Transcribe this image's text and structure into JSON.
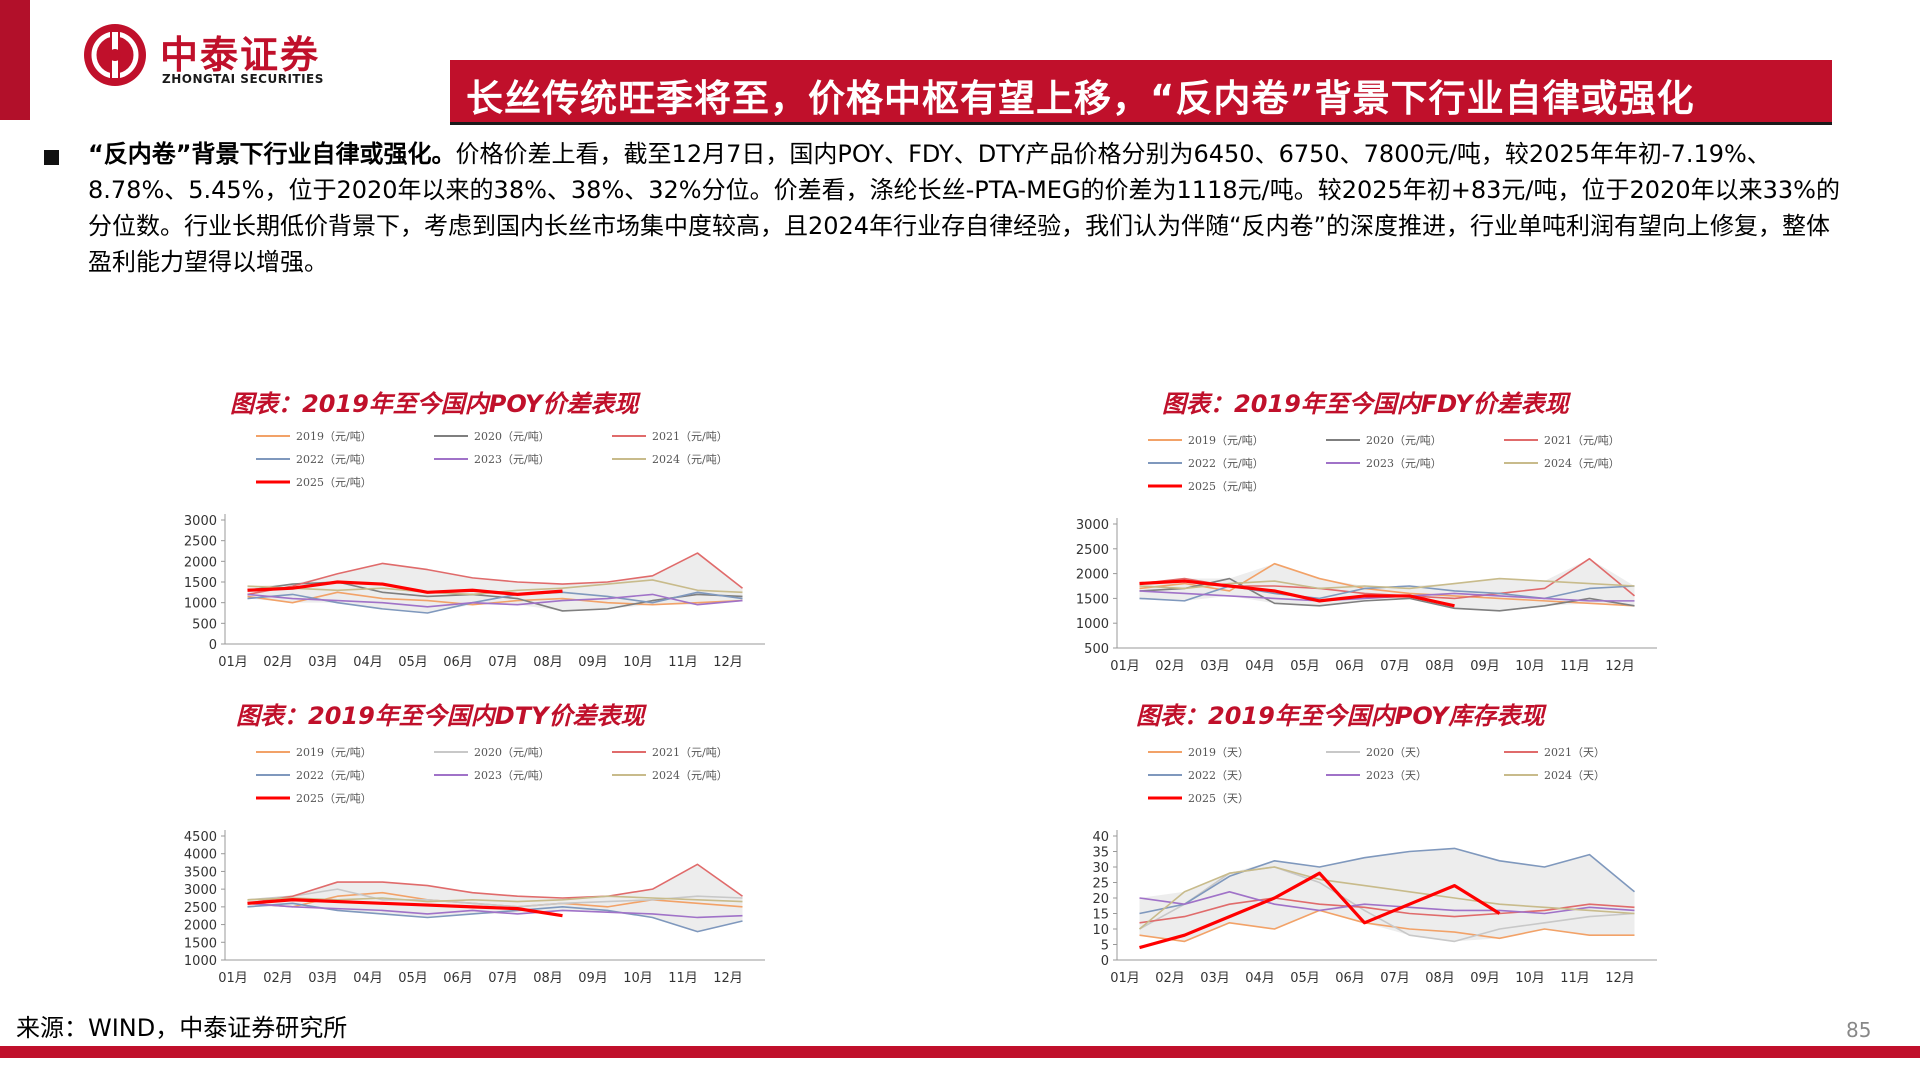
{
  "brand": {
    "name_cn": "中泰证券",
    "name_en": "ZHONGTAI SECURITIES",
    "color": "#c0102b"
  },
  "slide_title": "长丝传统旺季将至，价格中枢有望上移，“反内卷”背景下行业自律或强化",
  "paragraph": {
    "lead": "“反内卷”背景下行业自律或强化。",
    "body": "价格价差上看，截至12月7日，国内POY、FDY、DTY产品价格分别为6450、6750、7800元/吨，较2025年年初-7.19%、8.78%、5.45%，位于2020年以来的38%、38%、32%分位。价差看，涤纶长丝-PTA-MEG的价差为1118元/吨。较2025年初+83元/吨，位于2020年以来33%的分位数。行业长期低价背景下，考虑到国内长丝市场集中度较高，且2024年行业存自律经验，我们认为伴随“反内卷”的深度推进，行业单吨利润有望向上修复，整体盈利能力望得以增强。"
  },
  "chart_data": [
    {
      "type": "line",
      "title": "图表：2019年至今国内POY价差表现",
      "x_ticks": [
        "01月",
        "02月",
        "03月",
        "04月",
        "05月",
        "06月",
        "07月",
        "08月",
        "09月",
        "10月",
        "11月",
        "12月"
      ],
      "ylim": [
        0,
        3000
      ],
      "y_ticks": [
        "0",
        "500",
        "1000",
        "1500",
        "2000",
        "2500",
        "3000"
      ],
      "grid": false,
      "legend": "top",
      "series": [
        {
          "name": "2019（元/吨）",
          "color": "#f2a268",
          "values": [
            1150,
            1000,
            1250,
            1100,
            1050,
            950,
            1050,
            1100,
            1000,
            950,
            1000,
            1050
          ]
        },
        {
          "name": "2020（元/吨）",
          "color": "#7f7f7f",
          "values": [
            1300,
            1450,
            1500,
            1250,
            1150,
            1200,
            1100,
            800,
            850,
            1050,
            1200,
            1150
          ]
        },
        {
          "name": "2021（元/吨）",
          "color": "#e06b6b",
          "values": [
            1200,
            1400,
            1700,
            1950,
            1800,
            1600,
            1500,
            1450,
            1500,
            1650,
            2200,
            1350
          ]
        },
        {
          "name": "2022（元/吨）",
          "color": "#7f98bd",
          "values": [
            1100,
            1200,
            1000,
            850,
            750,
            1000,
            1200,
            1250,
            1150,
            1000,
            1250,
            1100
          ]
        },
        {
          "name": "2023（元/吨）",
          "color": "#a072c8",
          "values": [
            1200,
            1100,
            1050,
            1000,
            900,
            1000,
            950,
            1050,
            1100,
            1200,
            950,
            1050
          ]
        },
        {
          "name": "2024（元/吨）",
          "color": "#c8bb8b",
          "values": [
            1400,
            1350,
            1300,
            1350,
            1250,
            1200,
            1300,
            1350,
            1450,
            1550,
            1300,
            1250
          ]
        },
        {
          "name": "2025（元/吨）",
          "color": "#ff0000",
          "values": [
            1300,
            1350,
            1500,
            1450,
            1250,
            1300,
            1200,
            1280
          ]
        }
      ]
    },
    {
      "type": "line",
      "title": "图表：2019年至今国内FDY价差表现",
      "x_ticks": [
        "01月",
        "02月",
        "03月",
        "04月",
        "05月",
        "06月",
        "07月",
        "08月",
        "09月",
        "10月",
        "11月",
        "12月"
      ],
      "ylim": [
        500,
        3000
      ],
      "y_ticks": [
        "500",
        "1000",
        "1500",
        "2000",
        "2500",
        "3000"
      ],
      "grid": false,
      "legend": "top",
      "series": [
        {
          "name": "2019（元/吨）",
          "color": "#f2a268",
          "values": [
            1700,
            1800,
            1650,
            2200,
            1900,
            1700,
            1600,
            1550,
            1500,
            1450,
            1400,
            1350
          ]
        },
        {
          "name": "2020（元/吨）",
          "color": "#7f7f7f",
          "values": [
            1650,
            1700,
            1900,
            1400,
            1350,
            1450,
            1500,
            1300,
            1250,
            1350,
            1500,
            1350
          ]
        },
        {
          "name": "2021（元/吨）",
          "color": "#e06b6b",
          "values": [
            1800,
            1900,
            1750,
            1750,
            1700,
            1600,
            1550,
            1500,
            1600,
            1700,
            2300,
            1550
          ]
        },
        {
          "name": "2022（元/吨）",
          "color": "#7f98bd",
          "values": [
            1500,
            1450,
            1750,
            1600,
            1500,
            1700,
            1750,
            1650,
            1600,
            1500,
            1700,
            1750
          ]
        },
        {
          "name": "2023（元/吨）",
          "color": "#a072c8",
          "values": [
            1650,
            1600,
            1550,
            1500,
            1450,
            1500,
            1550,
            1600,
            1550,
            1500,
            1450,
            1450
          ]
        },
        {
          "name": "2024（元/吨）",
          "color": "#c8bb8b",
          "values": [
            1750,
            1700,
            1800,
            1850,
            1700,
            1750,
            1700,
            1800,
            1900,
            1850,
            1800,
            1750
          ]
        },
        {
          "name": "2025（元/吨）",
          "color": "#ff0000",
          "values": [
            1800,
            1850,
            1750,
            1650,
            1450,
            1550,
            1550,
            1350
          ]
        }
      ]
    },
    {
      "type": "line",
      "title": "图表：2019年至今国内DTY价差表现",
      "x_ticks": [
        "01月",
        "02月",
        "03月",
        "04月",
        "05月",
        "06月",
        "07月",
        "08月",
        "09月",
        "10月",
        "11月",
        "12月"
      ],
      "ylim": [
        1000,
        4500
      ],
      "y_ticks": [
        "1000",
        "1500",
        "2000",
        "2500",
        "3000",
        "3500",
        "4000",
        "4500"
      ],
      "grid": false,
      "legend": "top",
      "series": [
        {
          "name": "2019（元/吨）",
          "color": "#f2a268",
          "values": [
            2600,
            2500,
            2800,
            2900,
            2700,
            2600,
            2500,
            2600,
            2500,
            2700,
            2600,
            2500
          ]
        },
        {
          "name": "2020（元/吨）",
          "color": "#c8c8c8",
          "values": [
            2700,
            2800,
            3000,
            2700,
            2700,
            2600,
            2500,
            2600,
            2650,
            2700,
            2800,
            2750
          ]
        },
        {
          "name": "2021（元/吨）",
          "color": "#e06b6b",
          "values": [
            2600,
            2800,
            3200,
            3200,
            3100,
            2900,
            2800,
            2750,
            2800,
            3000,
            3700,
            2800
          ]
        },
        {
          "name": "2022（元/吨）",
          "color": "#7f98bd",
          "values": [
            2500,
            2600,
            2400,
            2300,
            2200,
            2300,
            2400,
            2500,
            2400,
            2200,
            1800,
            2100
          ]
        },
        {
          "name": "2023（元/吨）",
          "color": "#a072c8",
          "values": [
            2600,
            2500,
            2450,
            2400,
            2300,
            2400,
            2300,
            2400,
            2350,
            2300,
            2200,
            2250
          ]
        },
        {
          "name": "2024（元/吨）",
          "color": "#c8bb8b",
          "values": [
            2700,
            2750,
            2700,
            2750,
            2650,
            2700,
            2650,
            2700,
            2800,
            2750,
            2700,
            2650
          ]
        },
        {
          "name": "2025（元/吨）",
          "color": "#ff0000",
          "values": [
            2600,
            2700,
            2650,
            2600,
            2550,
            2500,
            2450,
            2250
          ]
        }
      ]
    },
    {
      "type": "line",
      "title": "图表：2019年至今国内POY库存表现",
      "x_ticks": [
        "01月",
        "02月",
        "03月",
        "04月",
        "05月",
        "06月",
        "07月",
        "08月",
        "09月",
        "10月",
        "11月",
        "12月"
      ],
      "ylim": [
        0,
        40
      ],
      "y_ticks": [
        "0",
        "5",
        "10",
        "15",
        "20",
        "25",
        "30",
        "35",
        "40"
      ],
      "grid": false,
      "legend": "top",
      "series": [
        {
          "name": "2019（天）",
          "color": "#f2a268",
          "values": [
            8,
            6,
            12,
            10,
            16,
            12,
            10,
            9,
            7,
            10,
            8,
            8
          ]
        },
        {
          "name": "2020（天）",
          "color": "#c8c8c8",
          "values": [
            10,
            18,
            28,
            30,
            25,
            16,
            8,
            6,
            10,
            12,
            14,
            15
          ]
        },
        {
          "name": "2021（天）",
          "color": "#e06b6b",
          "values": [
            12,
            14,
            18,
            20,
            18,
            17,
            15,
            14,
            15,
            16,
            18,
            17
          ]
        },
        {
          "name": "2022（天）",
          "color": "#7f98bd",
          "values": [
            15,
            18,
            27,
            32,
            30,
            33,
            35,
            36,
            32,
            30,
            34,
            22
          ]
        },
        {
          "name": "2023（天）",
          "color": "#a072c8",
          "values": [
            20,
            18,
            22,
            18,
            16,
            18,
            17,
            16,
            16,
            15,
            17,
            16
          ]
        },
        {
          "name": "2024（天）",
          "color": "#c8bb8b",
          "values": [
            10,
            22,
            28,
            30,
            26,
            24,
            22,
            20,
            18,
            17,
            16,
            15
          ]
        },
        {
          "name": "2025（天）",
          "color": "#ff0000",
          "values": [
            4,
            8,
            14,
            20,
            28,
            12,
            18,
            24,
            15
          ]
        }
      ]
    }
  ],
  "source": "来源：WIND，中泰证券研究所",
  "page_number": "85"
}
